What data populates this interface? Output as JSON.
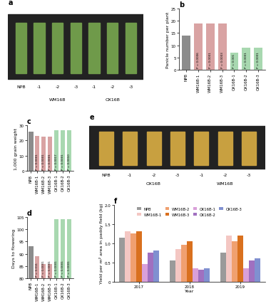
{
  "chart_data": [
    {
      "type": "image",
      "title": "a",
      "color": "#6f9a4a",
      "plants": [
        {
          "label": "NPB"
        },
        {
          "label": "-1",
          "group": "WM16B"
        },
        {
          "label": "-2",
          "group": "WM16B"
        },
        {
          "label": "-3",
          "group": "WM16B"
        },
        {
          "label": "-1",
          "group": "OX16B"
        },
        {
          "label": "-2",
          "group": "OX16B"
        },
        {
          "label": "-3",
          "group": "OX16B"
        }
      ]
    },
    {
      "type": "bar",
      "title": "b",
      "y_label": "Panicle number per plant",
      "categories": [
        "NPB",
        "WM16B-1",
        "WM16B-2",
        "WM16B-3",
        "OX16B-1",
        "OX16B-2",
        "OX16B-3"
      ],
      "values": [
        14,
        19,
        19,
        19,
        7,
        9,
        9
      ],
      "colors": [
        "#8c8c8c",
        "#d9a3a3",
        "#d9a3a3",
        "#d9a3a3",
        "#a8d8b0",
        "#a8d8b0",
        "#a8d8b0"
      ],
      "annotations": [
        null,
        "P = 0.0006",
        "P = 0.0001",
        "P = 0.0003",
        "P < 0.001",
        "P = 0.0001",
        "P = 0.0001"
      ],
      "ylim": [
        0,
        25
      ],
      "yticks": [
        0,
        5,
        10,
        15,
        20,
        25
      ]
    },
    {
      "type": "bar",
      "title": "c",
      "y_label": "1,000 grain weight",
      "categories": [
        "NPB",
        "WM16B-1",
        "WM16B-2",
        "WM16B-3",
        "OX16B-1",
        "OX16B-2",
        "OX16B-3"
      ],
      "values": [
        25.5,
        23,
        22.5,
        22.5,
        26.5,
        26.8,
        26.8
      ],
      "colors": [
        "#8c8c8c",
        "#d9a3a3",
        "#d9a3a3",
        "#d9a3a3",
        "#a8d8b0",
        "#a8d8b0",
        "#a8d8b0"
      ],
      "annotations": [
        null,
        "P < 0.0001",
        "P < 0.0001",
        "P < 0.0001",
        "P = 0.0017",
        "P = 0.0001",
        "P = 0.0010"
      ],
      "ylim": [
        0,
        30
      ],
      "yticks": [
        0,
        10,
        20,
        30
      ]
    },
    {
      "type": "image",
      "title": "e",
      "color": "#c8a040",
      "plants": [
        {
          "label": "NPB"
        },
        {
          "label": "-1",
          "group": "OX16B"
        },
        {
          "label": "-2",
          "group": "OX16B"
        },
        {
          "label": "-3",
          "group": "OX16B"
        },
        {
          "label": "-1",
          "group": "WM16B"
        },
        {
          "label": "-2",
          "group": "WM16B"
        },
        {
          "label": "-3",
          "group": "WM16B"
        }
      ]
    },
    {
      "type": "bar",
      "title": "d",
      "y_label": "Days to flowering",
      "categories": [
        "NPB",
        "WM16B-1",
        "WM16B-2",
        "WM16B-3",
        "OX16B-1",
        "OX16B-2",
        "OX16B-3"
      ],
      "values": [
        93,
        89,
        86,
        86,
        104,
        104,
        104
      ],
      "colors": [
        "#8c8c8c",
        "#d9a3a3",
        "#d9a3a3",
        "#d9a3a3",
        "#a8d8b0",
        "#a8d8b0",
        "#a8d8b0"
      ],
      "annotations": [
        null,
        "P = 0.011",
        "P < 0.0001",
        "P < 0.0001",
        "P < 0.0001",
        "P < 0.0001",
        "P < 0.0001"
      ],
      "ylim": [
        80,
        105
      ],
      "yticks": [
        80,
        85,
        90,
        95,
        100,
        105
      ]
    },
    {
      "type": "grouped_bar",
      "title": "f",
      "y_label": "Yield per m² area in paddy field (kg)",
      "x_label": "Year",
      "categories": [
        "2017",
        "2018",
        "2019"
      ],
      "series": [
        {
          "name": "NPB",
          "color": "#9a9a9a",
          "values": [
            1.15,
            0.55,
            0.75
          ]
        },
        {
          "name": "WM16B-1",
          "color": "#f4c7c3",
          "values": [
            1.3,
            0.85,
            1.2
          ]
        },
        {
          "name": "WM16B-2",
          "color": "#f0a070",
          "values": [
            1.25,
            0.95,
            1.05
          ]
        },
        {
          "name": "WM16B-3",
          "color": "#d9701e",
          "values": [
            1.3,
            1.05,
            1.2
          ]
        },
        {
          "name": "OX16B-1",
          "color": "#d9a0d9",
          "values": [
            0.45,
            0.35,
            0.35
          ]
        },
        {
          "name": "OX16B-2",
          "color": "#a070c0",
          "values": [
            0.75,
            0.3,
            0.55
          ]
        },
        {
          "name": "OX16B-3",
          "color": "#8090d0",
          "values": [
            0.8,
            0.35,
            0.6
          ]
        }
      ],
      "ylim": [
        0,
        2.0
      ],
      "yticks": [
        0,
        {
          "value": 0.5,
          "label": "0.5"
        },
        {
          "value": 1.0,
          "label": "1.0"
        },
        {
          "value": 1.5,
          "label": "1.5"
        },
        {
          "value": 2.0,
          "label": "2.0"
        }
      ],
      "legend": "upper center"
    }
  ]
}
